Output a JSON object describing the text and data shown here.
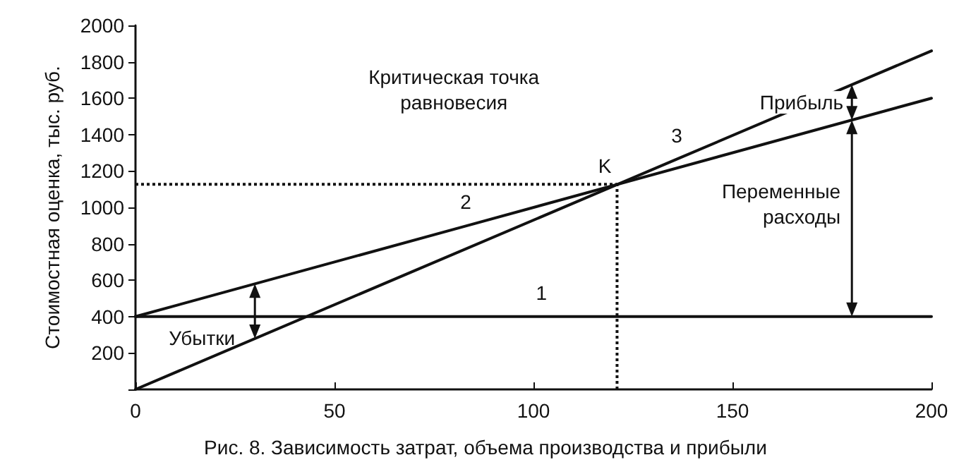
{
  "chart_data": {
    "type": "line",
    "ylabel": "Стоимостная оценка, тыс. руб.",
    "xlim": [
      0,
      200
    ],
    "xticks": [
      0,
      50,
      100,
      150,
      200
    ],
    "ylim": [
      0,
      2000
    ],
    "yticks": [
      {
        "value": 0,
        "label": null
      },
      200,
      400,
      600,
      800,
      1000,
      1200,
      1400,
      1600,
      1800,
      2000
    ],
    "grid": false,
    "marker": "none",
    "line_style": "solid",
    "series": [
      {
        "name": "1",
        "color": "#111111",
        "x": [
          0,
          102,
          200
        ],
        "values": [
          400,
          400,
          400
        ]
      },
      {
        "name": "2",
        "color": "#111111",
        "x": [
          0,
          83,
          200
        ],
        "values": [
          400,
          898,
          1600
        ]
      },
      {
        "name": "3",
        "color": "#111111",
        "x": [
          0,
          136,
          200
        ],
        "values": [
          0,
          1265,
          1860
        ]
      }
    ],
    "ref_lines": [
      {
        "axis": "x",
        "value": 121,
        "label": null,
        "line_style": "dotted",
        "color": "#111111"
      },
      {
        "axis": "y",
        "value": 1127,
        "label": null,
        "line_style": "dotted",
        "color": "#111111"
      }
    ],
    "annotations": [
      {
        "text": "K",
        "x": 121,
        "y": 1127
      },
      "Критическая точка равновесия",
      {
        "text": "Убытки",
        "x": 30,
        "y": 400
      },
      "Прибыль",
      "Переменные расходы",
      "Рис. 8. Зависимость затрат, объема производства и прибыли"
    ]
  }
}
